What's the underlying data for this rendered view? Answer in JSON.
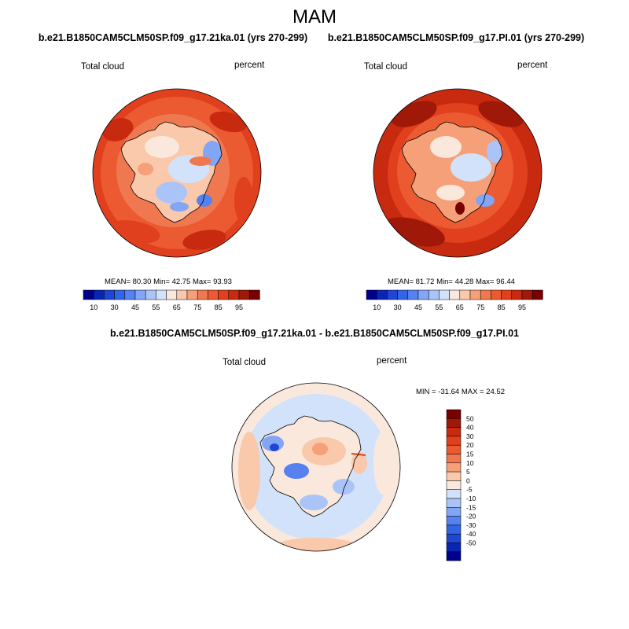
{
  "chart_data": [
    {
      "type": "heatmap",
      "projection": "south-polar-stereographic",
      "title": "b.e21.B1850CAM5CLM50SP.f09_g17.21ka.01 (yrs 270-299)",
      "left_label": "Total cloud",
      "right_label": "percent",
      "stats": {
        "mean_label": "MEAN=",
        "mean": "80.30",
        "min_label": "Min=",
        "min": "42.75",
        "max_label": "Max=",
        "max": "93.93"
      },
      "colorbar_levels": [
        "10",
        "30",
        "45",
        "55",
        "65",
        "75",
        "85",
        "95"
      ]
    },
    {
      "type": "heatmap",
      "projection": "south-polar-stereographic",
      "title": "b.e21.B1850CAM5CLM50SP.f09_g17.PI.01 (yrs 270-299)",
      "left_label": "Total cloud",
      "right_label": "percent",
      "stats": {
        "mean_label": "MEAN=",
        "mean": "81.72",
        "min_label": "Min=",
        "min": "44.28",
        "max_label": "Max=",
        "max": "96.44"
      },
      "colorbar_levels": [
        "10",
        "30",
        "45",
        "55",
        "65",
        "75",
        "85",
        "95"
      ]
    },
    {
      "type": "heatmap",
      "projection": "south-polar-stereographic",
      "title": "b.e21.B1850CAM5CLM50SP.f09_g17.21ka.01 - b.e21.B1850CAM5CLM50SP.f09_g17.PI.01",
      "left_label": "Total cloud",
      "right_label": "percent",
      "stats_text": "MIN = -31.64 MAX =  24.52",
      "colorbar_levels": [
        "50",
        "40",
        "30",
        "20",
        "15",
        "10",
        "5",
        "0",
        "-5",
        "-10",
        "-15",
        "-20",
        "-30",
        "-40",
        "-50"
      ]
    }
  ],
  "season": "MAM",
  "colors": {
    "abs_scale": [
      "#00008c",
      "#0a24b4",
      "#1f46d2",
      "#3264e6",
      "#5582f0",
      "#82a5f5",
      "#aac4f8",
      "#d2e2fb",
      "#fae8dc",
      "#fac8aa",
      "#f5a078",
      "#f07850",
      "#ec5a32",
      "#e0401e",
      "#c82a10",
      "#a01808",
      "#780000"
    ],
    "diff_scale": [
      "#780000",
      "#a01808",
      "#c82a10",
      "#e0401e",
      "#ec5a32",
      "#f07850",
      "#f5a078",
      "#fac8aa",
      "#fae8dc",
      "#d2e2fb",
      "#aac4f8",
      "#82a5f5",
      "#5582f0",
      "#3264e6",
      "#1f46d2",
      "#0a24b4",
      "#00008c"
    ],
    "land_outline": "#000000"
  }
}
